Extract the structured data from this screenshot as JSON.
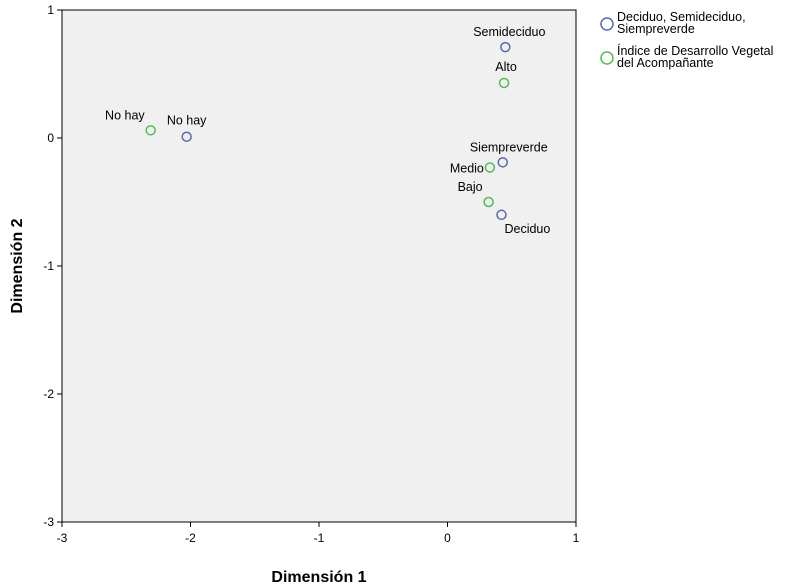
{
  "chart_data": {
    "type": "scatter",
    "xlabel": "Dimensión 1",
    "ylabel": "Dimensión 2",
    "xlim": [
      -3,
      1
    ],
    "ylim": [
      -3,
      1
    ],
    "x_ticks": [
      "-3",
      "-2",
      "-1",
      "0",
      "1"
    ],
    "y_ticks": [
      "1",
      "0",
      "-1",
      "-2",
      "-3"
    ],
    "grid": false,
    "legend_position": "top-right, outside plot",
    "series": [
      {
        "name": "Deciduo, Semideciduo, Siempreverde",
        "legend_lines": [
          "Deciduo, Semideciduo,",
          "Siempreverde"
        ],
        "color": "#5868b0",
        "points": [
          {
            "x": -2.03,
            "y": 0.01,
            "label": "No hay"
          },
          {
            "x": 0.45,
            "y": 0.71,
            "label": "Semideciduo"
          },
          {
            "x": 0.43,
            "y": -0.19,
            "label": "Siempreverde"
          },
          {
            "x": 0.42,
            "y": -0.6,
            "label": "Deciduo"
          }
        ]
      },
      {
        "name": "Índice de Desarrollo Vegetal del Acompañante",
        "legend_lines": [
          "Índice de Desarrollo Vegetal",
          "del Acompañante"
        ],
        "color": "#4cbf4c",
        "points": [
          {
            "x": -2.31,
            "y": 0.06,
            "label": "No hay"
          },
          {
            "x": 0.44,
            "y": 0.43,
            "label": "Alto"
          },
          {
            "x": 0.33,
            "y": -0.23,
            "label": "Medio"
          },
          {
            "x": 0.32,
            "y": -0.5,
            "label": "Bajo"
          }
        ]
      }
    ]
  }
}
